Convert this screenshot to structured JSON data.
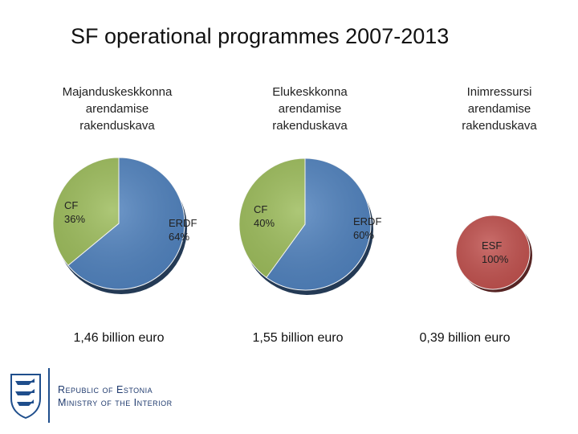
{
  "page": {
    "title": "SF operational programmes 2007-2013",
    "footer": {
      "line1": "Republic of Estonia",
      "line2": "Ministry of the Interior"
    }
  },
  "colors": {
    "erdf": "#4f81bd",
    "cf": "#9bbb59",
    "esf": "#c0504d"
  },
  "chart_data": [
    {
      "type": "pie",
      "title": "Majanduskeskkonna arendamise rakenduskava",
      "title_lines": [
        "Majanduskeskkonna",
        "arendamise",
        "rakenduskava"
      ],
      "total": "1,46 billion euro",
      "slices": [
        {
          "name": "ERDF",
          "value": 64,
          "label": "64%"
        },
        {
          "name": "CF",
          "value": 36,
          "label": "36%"
        }
      ]
    },
    {
      "type": "pie",
      "title": "Elukeskkonna arendamise rakenduskava",
      "title_lines": [
        "Elukeskkonna",
        "arendamise",
        "rakenduskava"
      ],
      "total": "1,55 billion euro",
      "slices": [
        {
          "name": "ERDF",
          "value": 60,
          "label": "60%"
        },
        {
          "name": "CF",
          "value": 40,
          "label": "40%"
        }
      ]
    },
    {
      "type": "pie",
      "title": "Inimressursi arendamise rakenduskava",
      "title_lines": [
        "Inimressursi",
        "arendamise",
        "rakenduskava"
      ],
      "total": "0,39 billion euro",
      "slices": [
        {
          "name": "ESF",
          "value": 100,
          "label": "100%"
        }
      ]
    }
  ]
}
